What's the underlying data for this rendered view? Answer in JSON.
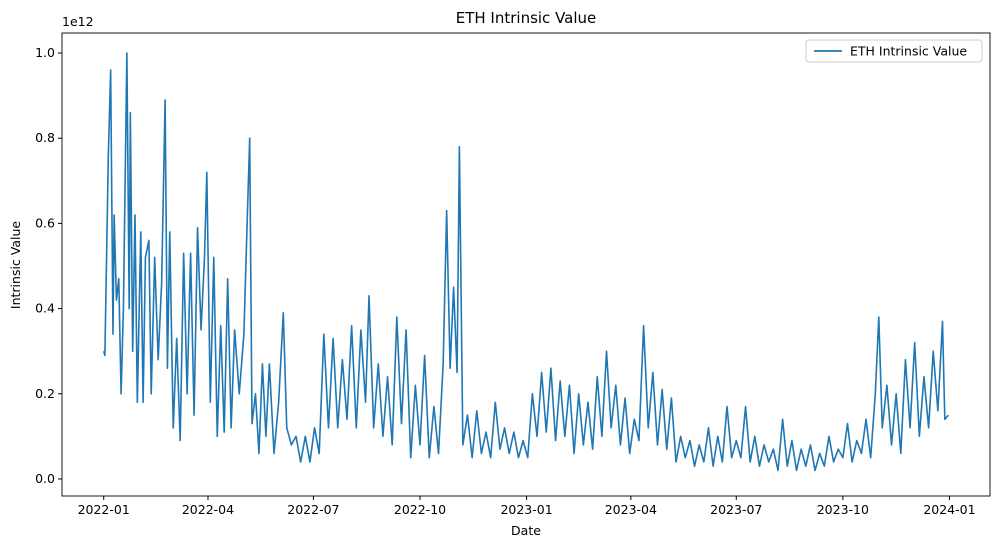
{
  "chart_data": {
    "type": "line",
    "title": "ETH Intrinsic Value",
    "xlabel": "Date",
    "ylabel": "Intrinsic Value",
    "y_offset_label": "1e12",
    "legend": "upper right",
    "grid": false,
    "xlim": [
      "2021-11-26",
      "2024-02-05"
    ],
    "ylim": [
      -0.04,
      1.047
    ],
    "xticks": [
      {
        "value": "2022-01-01",
        "label": "2022-01"
      },
      {
        "value": "2022-04-01",
        "label": "2022-04"
      },
      {
        "value": "2022-07-01",
        "label": "2022-07"
      },
      {
        "value": "2022-10-01",
        "label": "2022-10"
      },
      {
        "value": "2023-01-01",
        "label": "2023-01"
      },
      {
        "value": "2023-04-01",
        "label": "2023-04"
      },
      {
        "value": "2023-07-01",
        "label": "2023-07"
      },
      {
        "value": "2023-10-01",
        "label": "2023-10"
      },
      {
        "value": "2024-01-01",
        "label": "2024-01"
      }
    ],
    "yticks": [
      {
        "value": 0,
        "label": "0.0"
      },
      0.2,
      0.4,
      0.6,
      0.8,
      {
        "value": 1,
        "label": "1.0"
      }
    ],
    "x": [
      "2022-01-01",
      "2022-01-02",
      "2022-01-05",
      "2022-01-07",
      "2022-01-09",
      "2022-01-10",
      "2022-01-12",
      "2022-01-14",
      "2022-01-16",
      "2022-01-18",
      "2022-01-21",
      "2022-01-23",
      "2022-01-24",
      "2022-01-26",
      "2022-01-28",
      "2022-01-30",
      "2022-02-02",
      "2022-02-04",
      "2022-02-06",
      "2022-02-09",
      "2022-02-11",
      "2022-02-14",
      "2022-02-17",
      "2022-02-20",
      "2022-02-23",
      "2022-02-25",
      "2022-02-27",
      "2022-03-02",
      "2022-03-05",
      "2022-03-08",
      "2022-03-11",
      "2022-03-14",
      "2022-03-17",
      "2022-03-20",
      "2022-03-23",
      "2022-03-26",
      "2022-03-29",
      "2022-03-31",
      "2022-04-03",
      "2022-04-06",
      "2022-04-09",
      "2022-04-12",
      "2022-04-15",
      "2022-04-18",
      "2022-04-21",
      "2022-04-24",
      "2022-04-28",
      "2022-05-02",
      "2022-05-05",
      "2022-05-07",
      "2022-05-09",
      "2022-05-12",
      "2022-05-15",
      "2022-05-18",
      "2022-05-21",
      "2022-05-24",
      "2022-05-28",
      "2022-06-01",
      "2022-06-05",
      "2022-06-08",
      "2022-06-12",
      "2022-06-16",
      "2022-06-20",
      "2022-06-24",
      "2022-06-28",
      "2022-07-02",
      "2022-07-06",
      "2022-07-10",
      "2022-07-14",
      "2022-07-18",
      "2022-07-22",
      "2022-07-26",
      "2022-07-30",
      "2022-08-03",
      "2022-08-07",
      "2022-08-11",
      "2022-08-15",
      "2022-08-18",
      "2022-08-22",
      "2022-08-26",
      "2022-08-30",
      "2022-09-03",
      "2022-09-07",
      "2022-09-11",
      "2022-09-15",
      "2022-09-19",
      "2022-09-23",
      "2022-09-27",
      "2022-10-01",
      "2022-10-05",
      "2022-10-09",
      "2022-10-13",
      "2022-10-17",
      "2022-10-21",
      "2022-10-24",
      "2022-10-27",
      "2022-10-30",
      "2022-11-02",
      "2022-11-04",
      "2022-11-07",
      "2022-11-11",
      "2022-11-15",
      "2022-11-19",
      "2022-11-23",
      "2022-11-27",
      "2022-12-01",
      "2022-12-05",
      "2022-12-09",
      "2022-12-13",
      "2022-12-17",
      "2022-12-21",
      "2022-12-25",
      "2022-12-29",
      "2023-01-02",
      "2023-01-06",
      "2023-01-10",
      "2023-01-14",
      "2023-01-18",
      "2023-01-22",
      "2023-01-26",
      "2023-01-30",
      "2023-02-03",
      "2023-02-07",
      "2023-02-11",
      "2023-02-15",
      "2023-02-19",
      "2023-02-23",
      "2023-02-27",
      "2023-03-03",
      "2023-03-07",
      "2023-03-11",
      "2023-03-15",
      "2023-03-19",
      "2023-03-23",
      "2023-03-27",
      "2023-03-31",
      "2023-04-04",
      "2023-04-08",
      "2023-04-12",
      "2023-04-16",
      "2023-04-20",
      "2023-04-24",
      "2023-04-28",
      "2023-05-02",
      "2023-05-06",
      "2023-05-10",
      "2023-05-14",
      "2023-05-18",
      "2023-05-22",
      "2023-05-26",
      "2023-05-30",
      "2023-06-03",
      "2023-06-07",
      "2023-06-11",
      "2023-06-15",
      "2023-06-19",
      "2023-06-23",
      "2023-06-27",
      "2023-07-01",
      "2023-07-05",
      "2023-07-09",
      "2023-07-13",
      "2023-07-17",
      "2023-07-21",
      "2023-07-25",
      "2023-07-29",
      "2023-08-02",
      "2023-08-06",
      "2023-08-10",
      "2023-08-14",
      "2023-08-18",
      "2023-08-22",
      "2023-08-26",
      "2023-08-30",
      "2023-09-03",
      "2023-09-07",
      "2023-09-11",
      "2023-09-15",
      "2023-09-19",
      "2023-09-23",
      "2023-09-27",
      "2023-10-01",
      "2023-10-05",
      "2023-10-09",
      "2023-10-13",
      "2023-10-17",
      "2023-10-21",
      "2023-10-25",
      "2023-10-29",
      "2023-11-01",
      "2023-11-04",
      "2023-11-08",
      "2023-11-12",
      "2023-11-16",
      "2023-11-20",
      "2023-11-24",
      "2023-11-28",
      "2023-12-02",
      "2023-12-06",
      "2023-12-10",
      "2023-12-14",
      "2023-12-18",
      "2023-12-22",
      "2023-12-26",
      "2023-12-28",
      "2023-12-31"
    ],
    "series": [
      {
        "name": "ETH Intrinsic Value",
        "color": "#1f77b4",
        "values": [
          0.3,
          0.29,
          0.76,
          0.96,
          0.34,
          0.62,
          0.42,
          0.47,
          0.2,
          0.4,
          1.0,
          0.4,
          0.86,
          0.3,
          0.62,
          0.18,
          0.58,
          0.18,
          0.52,
          0.56,
          0.2,
          0.52,
          0.28,
          0.46,
          0.89,
          0.26,
          0.58,
          0.12,
          0.33,
          0.09,
          0.53,
          0.2,
          0.53,
          0.15,
          0.59,
          0.35,
          0.52,
          0.72,
          0.18,
          0.52,
          0.1,
          0.36,
          0.11,
          0.47,
          0.12,
          0.35,
          0.2,
          0.34,
          0.62,
          0.8,
          0.13,
          0.2,
          0.06,
          0.27,
          0.1,
          0.27,
          0.06,
          0.18,
          0.39,
          0.12,
          0.08,
          0.1,
          0.04,
          0.1,
          0.04,
          0.12,
          0.06,
          0.34,
          0.12,
          0.33,
          0.12,
          0.28,
          0.14,
          0.36,
          0.12,
          0.35,
          0.18,
          0.43,
          0.12,
          0.27,
          0.1,
          0.24,
          0.08,
          0.38,
          0.13,
          0.35,
          0.05,
          0.22,
          0.08,
          0.29,
          0.05,
          0.17,
          0.06,
          0.27,
          0.63,
          0.26,
          0.45,
          0.25,
          0.78,
          0.08,
          0.15,
          0.05,
          0.16,
          0.06,
          0.11,
          0.05,
          0.18,
          0.07,
          0.12,
          0.06,
          0.11,
          0.05,
          0.09,
          0.05,
          0.2,
          0.1,
          0.25,
          0.11,
          0.26,
          0.09,
          0.23,
          0.1,
          0.22,
          0.06,
          0.2,
          0.08,
          0.18,
          0.07,
          0.24,
          0.1,
          0.3,
          0.12,
          0.22,
          0.08,
          0.19,
          0.06,
          0.14,
          0.09,
          0.36,
          0.12,
          0.25,
          0.08,
          0.21,
          0.07,
          0.19,
          0.04,
          0.1,
          0.05,
          0.09,
          0.03,
          0.08,
          0.04,
          0.12,
          0.03,
          0.1,
          0.04,
          0.17,
          0.05,
          0.09,
          0.05,
          0.17,
          0.04,
          0.1,
          0.03,
          0.08,
          0.04,
          0.07,
          0.02,
          0.14,
          0.03,
          0.09,
          0.02,
          0.07,
          0.03,
          0.08,
          0.02,
          0.06,
          0.03,
          0.1,
          0.04,
          0.07,
          0.05,
          0.13,
          0.04,
          0.09,
          0.06,
          0.14,
          0.05,
          0.2,
          0.38,
          0.12,
          0.22,
          0.08,
          0.2,
          0.06,
          0.28,
          0.12,
          0.32,
          0.1,
          0.24,
          0.12,
          0.3,
          0.16,
          0.37,
          0.14,
          0.15
        ]
      }
    ]
  }
}
